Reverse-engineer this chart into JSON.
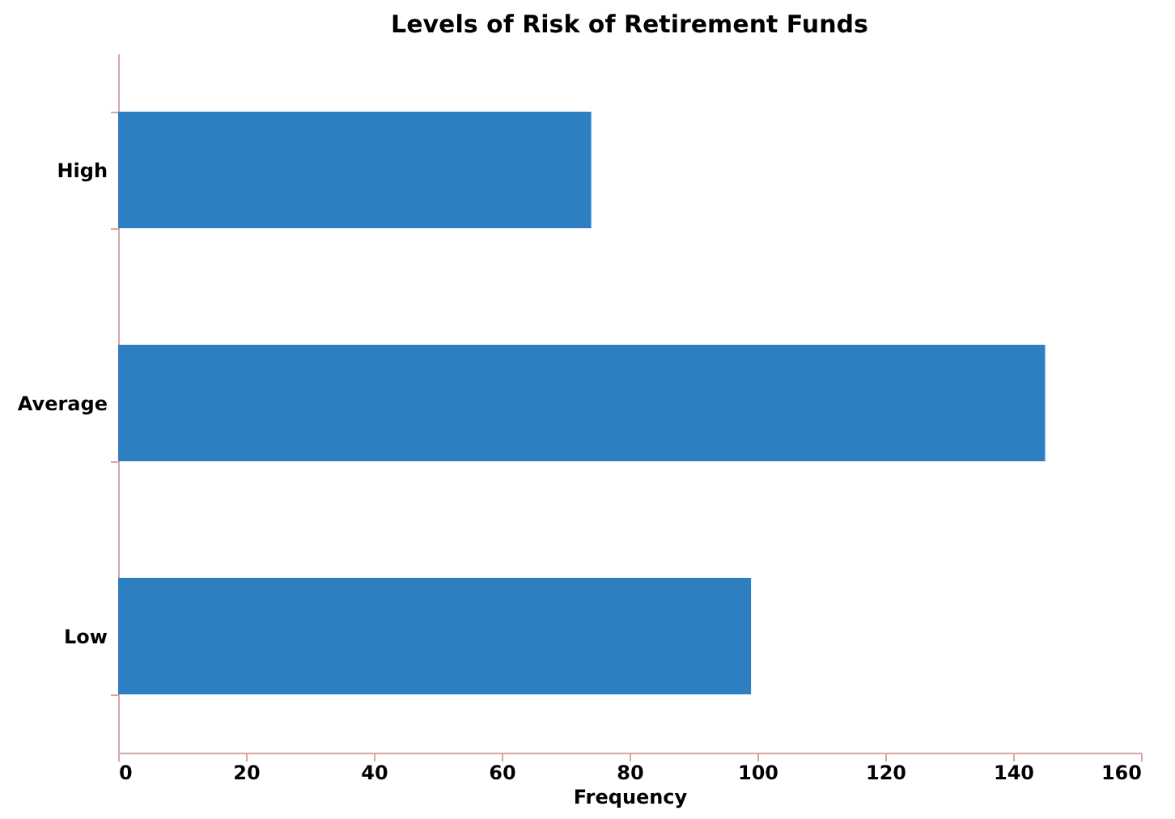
{
  "chart_data": {
    "type": "bar",
    "orientation": "horizontal",
    "title": "Levels of Risk of Retirement Funds",
    "xlabel": "Frequency",
    "categories": [
      "High",
      "Average",
      "Low"
    ],
    "values": [
      74,
      145,
      99
    ],
    "color": "#2e7fc2",
    "xlim": [
      0,
      160
    ],
    "xticks": [
      0,
      20,
      40,
      60,
      80,
      100,
      120,
      140,
      160
    ],
    "grid": false
  }
}
